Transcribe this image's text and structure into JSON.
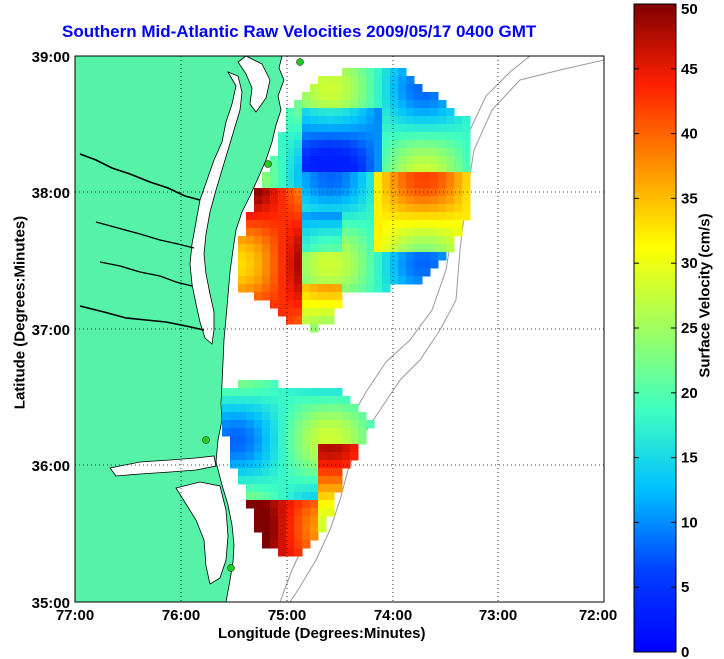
{
  "title": "Southern Mid-Atlantic Raw Velocities 2009/05/17 0400 GMT",
  "x_axis": {
    "label": "Longitude (Degrees:Minutes)",
    "ticks": [
      "77:00",
      "76:00",
      "75:00",
      "74:00",
      "73:00",
      "72:00"
    ]
  },
  "y_axis": {
    "label": "Latitude (Degrees:Minutes)",
    "ticks": [
      "39:00",
      "38:00",
      "37:00",
      "36:00",
      "35:00"
    ]
  },
  "colorbar": {
    "label": "Surface Velocity (cm/s)",
    "ticks": [
      "50",
      "45",
      "40",
      "35",
      "30",
      "25",
      "20",
      "15",
      "10",
      "5",
      "0"
    ],
    "min": 0,
    "max": 50,
    "colormap": "jet"
  },
  "map_extent": {
    "lon_min": -77,
    "lon_max": -72,
    "lat_min": 35,
    "lat_max": 39
  },
  "colors": {
    "land": "#55f2a8",
    "ocean": "#ffffff",
    "bathymetry_contour": "#9a9a9a",
    "radar_site": "#22cc22",
    "vector": "#000000",
    "title": "#0000ff"
  },
  "grid": "dotted",
  "legend": "colorbar-right"
}
